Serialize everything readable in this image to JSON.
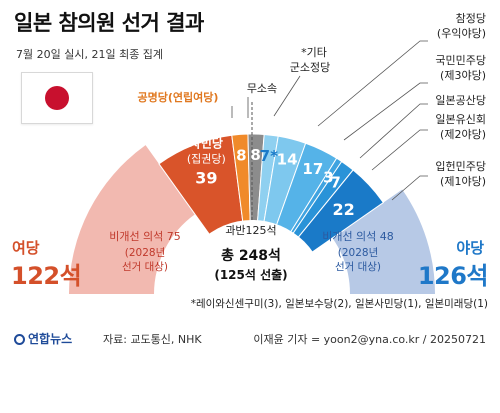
{
  "title": "일본 참의원 선거 결과",
  "subtitle": "7월 20일 실시, 21일 최종 집계",
  "colors": {
    "ruling_dark": "#d9542a",
    "ruling_light": "#f2b9b0",
    "komeito": "#f08a2a",
    "independent": "#8c8c8c",
    "opposition_light": "#b7c9e6",
    "leader": "#555555"
  },
  "ruling_side": {
    "label": "여당",
    "seats": "122석"
  },
  "opposition_side": {
    "label": "야당",
    "seats": "126석"
  },
  "center": {
    "majority": "과반125석",
    "total": "총 248석",
    "total_sub": "(125석 선출)"
  },
  "footnote": "*레이와신센구미(3), 일본보수당(2), 일본사민당(1), 일본미래당(1)",
  "footer": {
    "logo": "연합뉴스",
    "source": "자료: 교도통신, NHK",
    "credit": "이재윤 기자 = yoon2@yna.co.kr / 20250721"
  },
  "chart_data": {
    "type": "pie",
    "shape": "semicircle",
    "title": "일본 참의원 선거 결과",
    "total_seats": 248,
    "inner_segments": [
      {
        "name": "자민당",
        "note": "(집권당)",
        "value": 39,
        "color": "#d9542a"
      },
      {
        "name": "공명당",
        "note": "(연립여당)",
        "value": 8,
        "color": "#f08a2a"
      },
      {
        "name": "무소속",
        "value": 8,
        "color": "#8c8c8c"
      },
      {
        "name": "*기타",
        "note": "군소정당",
        "value": 7,
        "value_label": "7*",
        "color": "#8fd0f0"
      },
      {
        "name": "참정당",
        "note": "(우익야당)",
        "value": 14,
        "color": "#7ec8ee"
      },
      {
        "name": "국민민주당",
        "note": "(제3야당)",
        "value": 17,
        "color": "#55b3e8"
      },
      {
        "name": "일본공산당",
        "value": 3,
        "color": "#3fa3e0"
      },
      {
        "name": "일본유신회",
        "note": "(제2야당)",
        "value": 7,
        "color": "#2a93d8"
      },
      {
        "name": "입헌민주당",
        "note": "(제1야당)",
        "value": 22,
        "color": "#1a7ac8"
      }
    ],
    "outer_segments": [
      {
        "name": "비개선 의석",
        "value": 75,
        "note": "(2028년 선거 대상)",
        "color": "#f2b9b0",
        "side": "ruling"
      },
      {
        "name": "비개선 의석",
        "value": 48,
        "note": "(2028년 선거 대상)",
        "color": "#b7c9e6",
        "side": "opposition"
      }
    ],
    "ruling_total": 122,
    "opposition_total": 126,
    "majority": 125
  }
}
